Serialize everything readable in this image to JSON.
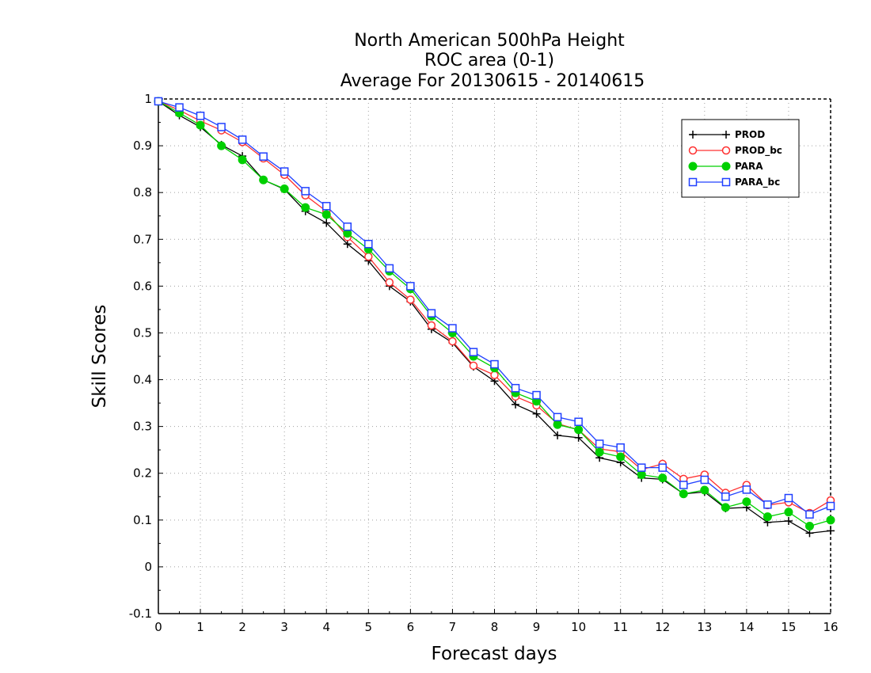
{
  "chart_data": {
    "type": "line",
    "title_lines": [
      "North American 500hPa Height",
      "ROC area (0-1)",
      "Average For 20130615 - 20140615"
    ],
    "xlabel": "Forecast days",
    "ylabel": "Skill Scores",
    "xlim": [
      0,
      16
    ],
    "ylim": [
      -0.1,
      1
    ],
    "x_ticks": [
      0,
      1,
      2,
      3,
      4,
      5,
      6,
      7,
      8,
      9,
      10,
      11,
      12,
      13,
      14,
      15,
      16
    ],
    "y_ticks": [
      -0.1,
      0,
      0.1,
      0.2,
      0.3,
      0.4,
      0.5,
      0.6,
      0.7,
      0.8,
      0.9,
      1
    ],
    "y_tick_labels": [
      "-0.1",
      "0",
      "0.1",
      "0.2",
      "0.3",
      "0.4",
      "0.5",
      "0.6",
      "0.7",
      "0.8",
      "0.9",
      "1"
    ],
    "grid": true,
    "legend_position": "top-right",
    "x": [
      0,
      0.5,
      1,
      1.5,
      2,
      2.5,
      3,
      3.5,
      4,
      4.5,
      5,
      5.5,
      6,
      6.5,
      7,
      7.5,
      8,
      8.5,
      9,
      9.5,
      10,
      10.5,
      11,
      11.5,
      12,
      12.5,
      13,
      13.5,
      14,
      14.5,
      15,
      15.5,
      16
    ],
    "series": [
      {
        "name": "PROD",
        "color": "#000000",
        "marker": "plus",
        "values": [
          0.995,
          0.965,
          0.94,
          0.902,
          0.878,
          0.827,
          0.807,
          0.76,
          0.735,
          0.69,
          0.654,
          0.6,
          0.567,
          0.508,
          0.479,
          0.428,
          0.397,
          0.347,
          0.327,
          0.281,
          0.276,
          0.233,
          0.223,
          0.19,
          0.187,
          0.156,
          0.16,
          0.125,
          0.127,
          0.095,
          0.098,
          0.072,
          0.077
        ]
      },
      {
        "name": "PROD_bc",
        "color": "#ff3030",
        "marker": "open-circle",
        "values": [
          0.995,
          0.976,
          0.953,
          0.933,
          0.908,
          0.873,
          0.838,
          0.794,
          0.76,
          0.705,
          0.663,
          0.608,
          0.571,
          0.516,
          0.482,
          0.43,
          0.41,
          0.364,
          0.345,
          0.306,
          0.293,
          0.252,
          0.246,
          0.208,
          0.22,
          0.188,
          0.197,
          0.158,
          0.175,
          0.132,
          0.138,
          0.115,
          0.142
        ]
      },
      {
        "name": "PARA",
        "color": "#00d000",
        "marker": "filled-circle",
        "values": [
          0.995,
          0.97,
          0.944,
          0.9,
          0.87,
          0.827,
          0.808,
          0.768,
          0.753,
          0.713,
          0.679,
          0.632,
          0.594,
          0.536,
          0.5,
          0.45,
          0.425,
          0.372,
          0.354,
          0.304,
          0.293,
          0.245,
          0.235,
          0.197,
          0.19,
          0.156,
          0.164,
          0.127,
          0.139,
          0.107,
          0.117,
          0.087,
          0.1
        ]
      },
      {
        "name": "PARA_bc",
        "color": "#2040ff",
        "marker": "open-square",
        "values": [
          0.995,
          0.982,
          0.964,
          0.94,
          0.913,
          0.877,
          0.845,
          0.803,
          0.771,
          0.727,
          0.69,
          0.638,
          0.6,
          0.542,
          0.51,
          0.459,
          0.433,
          0.382,
          0.367,
          0.32,
          0.31,
          0.263,
          0.255,
          0.212,
          0.212,
          0.175,
          0.186,
          0.15,
          0.165,
          0.133,
          0.147,
          0.112,
          0.13
        ]
      }
    ]
  }
}
